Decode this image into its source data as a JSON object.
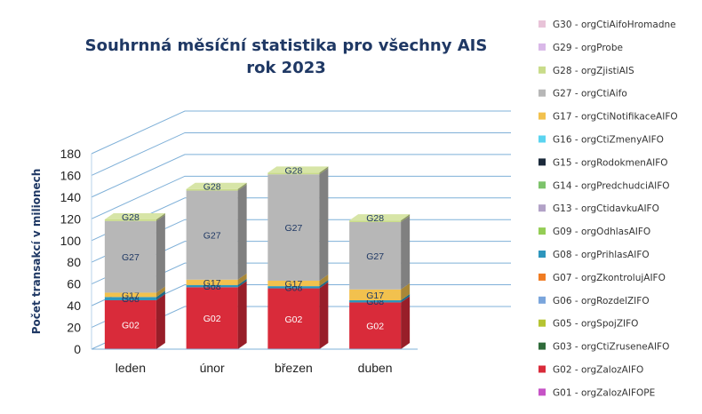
{
  "chart_data": {
    "type": "bar",
    "stacked": true,
    "three_d": true,
    "title": [
      "Souhrnná měsíční statistika pro všechny AIS",
      "rok 2023"
    ],
    "ylabel": "Počet transakcí v milionech",
    "xlabel": "",
    "categories": [
      "leden",
      "únor",
      "březen",
      "duben"
    ],
    "ylim": [
      0,
      180
    ],
    "yticks": [
      0,
      20,
      40,
      60,
      80,
      100,
      120,
      140,
      160,
      180
    ],
    "grid": true,
    "legend_position": "right",
    "series": [
      {
        "name": "G02 - orgZalozAIFO",
        "label": "G02",
        "color": "#d92b3a",
        "values": [
          45,
          57,
          56,
          43
        ]
      },
      {
        "name": "G08 - orgPrihlasAIFO",
        "label": "G08",
        "color": "#2e96bd",
        "values": [
          3,
          2,
          2,
          2
        ]
      },
      {
        "name": "G17 - orgCtiNotifikaceAIFO",
        "label": "G17",
        "color": "#f2c14e",
        "values": [
          4,
          5,
          5,
          10
        ]
      },
      {
        "name": "G27 - orgCtiAifo",
        "label": "G27",
        "color": "#b7b7b7",
        "values": [
          66,
          82,
          98,
          62
        ]
      },
      {
        "name": "G28 - orgZjistiAIS",
        "label": "G28",
        "color": "#c9dc8a",
        "values": [
          1.5,
          1.5,
          1.5,
          1.5
        ]
      }
    ]
  },
  "legend": [
    {
      "label": "G30 - orgCtiAifoHromadne",
      "color": "#e8c3d8"
    },
    {
      "label": "G29 - orgProbe",
      "color": "#d9b8e8"
    },
    {
      "label": "G28 - orgZjistiAIS",
      "color": "#c9dc8a"
    },
    {
      "label": "G27 - orgCtiAifo",
      "color": "#b7b7b7"
    },
    {
      "label": "G17 - orgCtiNotifikaceAIFO",
      "color": "#f2c14e"
    },
    {
      "label": "G16 - orgCtiZmenyAIFO",
      "color": "#5bd4f0"
    },
    {
      "label": "G15 - orgRodokmenAIFO",
      "color": "#1b2a3b"
    },
    {
      "label": "G14 - orgPredchudciAIFO",
      "color": "#7dc36b"
    },
    {
      "label": "G13 - orgCtidavkuAIFO",
      "color": "#b2a2c7"
    },
    {
      "label": "G09 - orgOdhlasAIFO",
      "color": "#94cd55"
    },
    {
      "label": "G08 - orgPrihlasAIFO",
      "color": "#2e96bd"
    },
    {
      "label": "G07 - orgZkontrolujAIFO",
      "color": "#f07c22"
    },
    {
      "label": "G06 - orgRozdelZIFO",
      "color": "#7aa5dc"
    },
    {
      "label": "G05 - orgSpojZIFO",
      "color": "#b5c432"
    },
    {
      "label": "G03 - orgCtiZruseneAIFO",
      "color": "#2f6b3a"
    },
    {
      "label": "G02 - orgZalozAIFO",
      "color": "#d92b3a"
    },
    {
      "label": "G01 - orgZalozAIFOPE",
      "color": "#c653c6"
    }
  ]
}
